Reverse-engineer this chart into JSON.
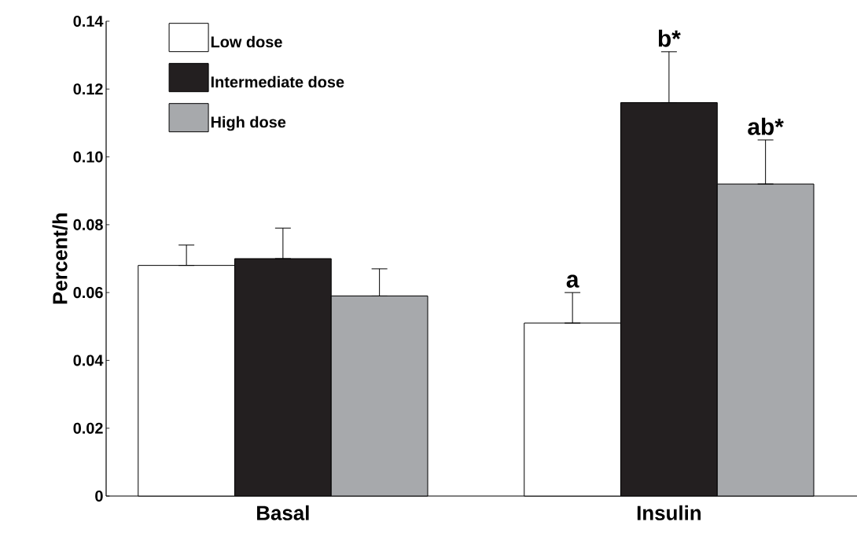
{
  "chart_data": {
    "type": "bar",
    "ylabel": "Percent/h",
    "categories": [
      "Basal",
      "Insulin"
    ],
    "series": [
      {
        "name": "Low dose",
        "color": "#ffffff",
        "values": [
          0.068,
          0.051
        ],
        "errors": [
          [
            0.068,
            0.074
          ],
          [
            0.051,
            0.06
          ]
        ]
      },
      {
        "name": "Intermediate dose",
        "color": "#231f20",
        "values": [
          0.07,
          0.116
        ],
        "errors": [
          [
            0.07,
            0.079
          ],
          [
            0.116,
            0.131
          ]
        ]
      },
      {
        "name": "High dose",
        "color": "#a7a9ac",
        "values": [
          0.059,
          0.092
        ],
        "errors": [
          [
            0.059,
            0.067
          ],
          [
            0.092,
            0.105
          ]
        ]
      }
    ],
    "ylim": [
      0,
      0.14
    ],
    "yticks": [
      0,
      0.02,
      0.04,
      0.06,
      0.08,
      {
        "value": 0.1,
        "label": "0.10"
      },
      0.12,
      0.14
    ],
    "annotations": [
      "a",
      "b*",
      "ab*"
    ],
    "legend": "top left",
    "grid": false
  }
}
